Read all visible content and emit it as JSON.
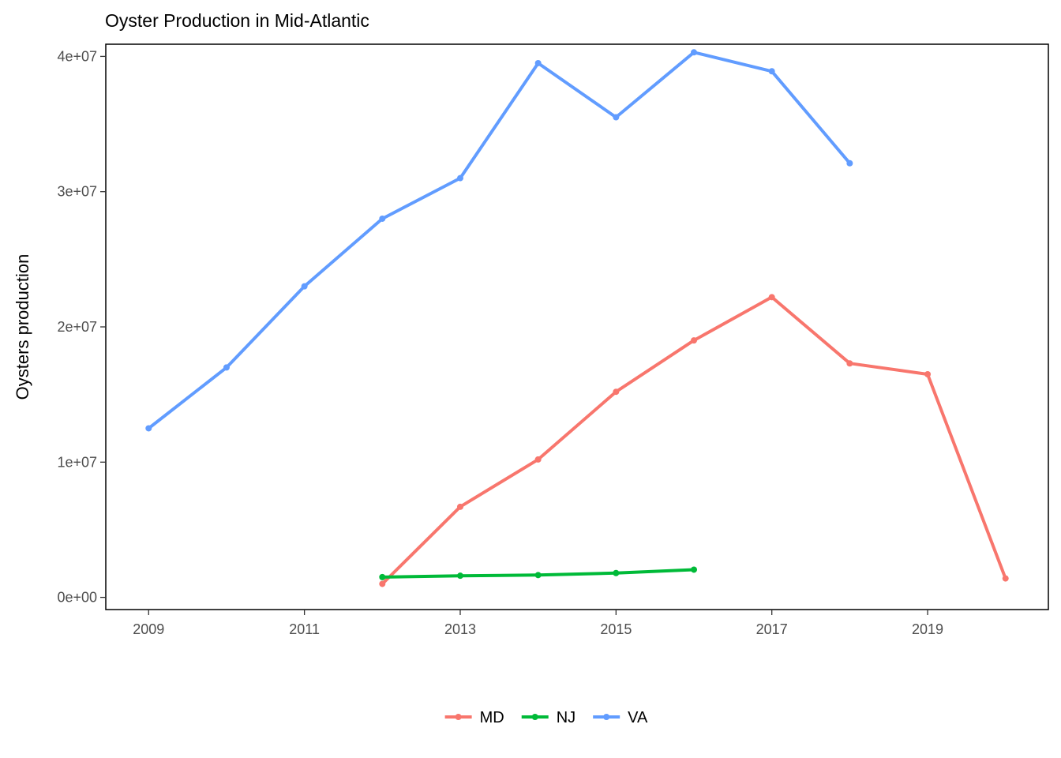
{
  "chart_data": {
    "type": "line",
    "title": "Oyster Production in Mid-Atlantic",
    "xlabel": "",
    "ylabel": "Oysters production",
    "xlim": [
      2008.45,
      2020.55
    ],
    "ylim": [
      -900000,
      40900000
    ],
    "x_ticks": [
      {
        "value": 2009,
        "label": "2009"
      },
      {
        "value": 2011,
        "label": "2011"
      },
      {
        "value": 2013,
        "label": "2013"
      },
      {
        "value": 2015,
        "label": "2015"
      },
      {
        "value": 2017,
        "label": "2017"
      },
      {
        "value": 2019,
        "label": "2019"
      }
    ],
    "y_ticks": [
      {
        "value": 0,
        "label": "0e+00"
      },
      {
        "value": 10000000,
        "label": "1e+07"
      },
      {
        "value": 20000000,
        "label": "2e+07"
      },
      {
        "value": 30000000,
        "label": "3e+07"
      },
      {
        "value": 40000000,
        "label": "4e+07"
      }
    ],
    "grid": false,
    "legend_position": "bottom",
    "series": [
      {
        "name": "MD",
        "color": "#F8766D",
        "points": [
          {
            "x": 2012,
            "y": 1000000
          },
          {
            "x": 2013,
            "y": 6700000
          },
          {
            "x": 2014,
            "y": 10200000
          },
          {
            "x": 2015,
            "y": 15200000
          },
          {
            "x": 2016,
            "y": 19000000
          },
          {
            "x": 2017,
            "y": 22200000
          },
          {
            "x": 2018,
            "y": 17300000
          },
          {
            "x": 2019,
            "y": 16500000
          },
          {
            "x": 2020,
            "y": 1400000
          }
        ]
      },
      {
        "name": "NJ",
        "color": "#00BA38",
        "points": [
          {
            "x": 2012,
            "y": 1500000
          },
          {
            "x": 2013,
            "y": 1600000
          },
          {
            "x": 2014,
            "y": 1650000
          },
          {
            "x": 2015,
            "y": 1800000
          },
          {
            "x": 2016,
            "y": 2050000
          }
        ]
      },
      {
        "name": "VA",
        "color": "#619CFF",
        "points": [
          {
            "x": 2009,
            "y": 12500000
          },
          {
            "x": 2010,
            "y": 17000000
          },
          {
            "x": 2011,
            "y": 23000000
          },
          {
            "x": 2012,
            "y": 28000000
          },
          {
            "x": 2013,
            "y": 31000000
          },
          {
            "x": 2014,
            "y": 39500000
          },
          {
            "x": 2015,
            "y": 35500000
          },
          {
            "x": 2016,
            "y": 40300000
          },
          {
            "x": 2017,
            "y": 38900000
          },
          {
            "x": 2018,
            "y": 32100000
          }
        ]
      }
    ]
  }
}
